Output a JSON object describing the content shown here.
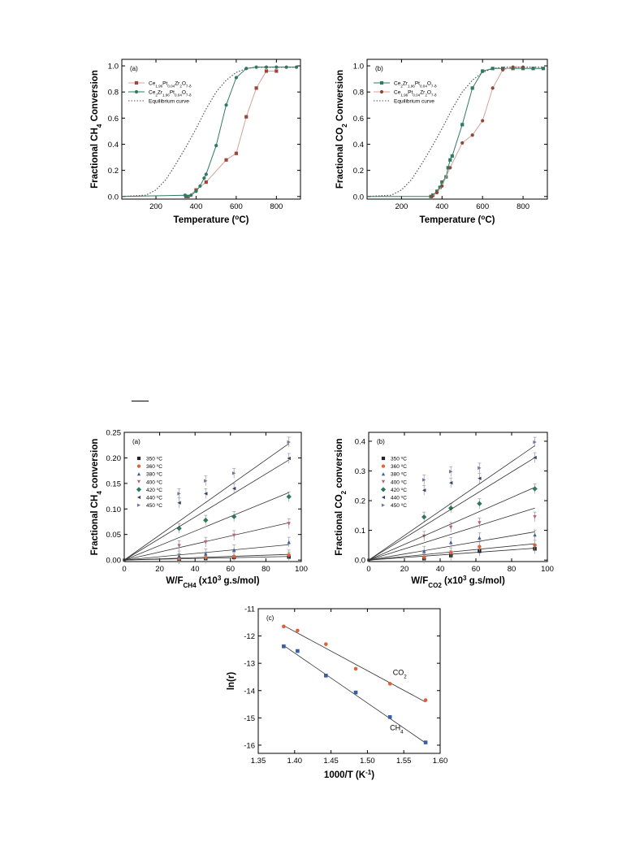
{
  "chart_data": [
    {
      "id": "top-a",
      "type": "line",
      "panel_label": "(a)",
      "xlabel": "Temperature (°C)",
      "ylabel": "Fractional CH4 Conversion",
      "xlim": [
        30,
        920
      ],
      "ylim": [
        -0.02,
        1.05
      ],
      "xticks": [
        200,
        400,
        600,
        800
      ],
      "yticks": [
        0.0,
        0.2,
        0.4,
        0.6,
        0.8,
        1.0
      ],
      "legend_position": "top-left",
      "series": [
        {
          "name": "Ce1.96Pt0.04Zr2O7-δ",
          "color": "#a0443a",
          "line_color": "#d9a09a",
          "marker": "square",
          "x": [
            350,
            360,
            400,
            450,
            550,
            600,
            650,
            700,
            750,
            800
          ],
          "y": [
            0.0,
            0.0,
            0.05,
            0.11,
            0.28,
            0.33,
            0.61,
            0.83,
            0.96,
            0.96
          ]
        },
        {
          "name": "Ce2Zr1.96Pt0.04O7-δ",
          "color": "#2e7b63",
          "line_color": "#2e7b63",
          "marker": "circle",
          "x": [
            30,
            345,
            355,
            375,
            400,
            420,
            440,
            450,
            500,
            550,
            600,
            650,
            700,
            750,
            800,
            850,
            900
          ],
          "y": [
            0.0,
            0.01,
            0.0,
            0.01,
            0.04,
            0.08,
            0.14,
            0.17,
            0.39,
            0.7,
            0.91,
            0.98,
            0.99,
            0.99,
            0.99,
            0.99,
            0.99
          ]
        },
        {
          "name": "Equilibrium curve",
          "color": "#555555",
          "line_color": "#555555",
          "marker": "none",
          "dashed": true,
          "x": [
            30,
            150,
            200,
            250,
            300,
            350,
            400,
            450,
            500,
            550,
            600,
            650,
            700,
            900
          ],
          "y": [
            0.0,
            0.01,
            0.05,
            0.13,
            0.25,
            0.38,
            0.52,
            0.67,
            0.8,
            0.89,
            0.95,
            0.98,
            0.99,
            0.99
          ]
        }
      ]
    },
    {
      "id": "top-b",
      "type": "line",
      "panel_label": "(b)",
      "xlabel": "Temperature (°C)",
      "ylabel": "Fractional CO2 Conversion",
      "xlim": [
        30,
        920
      ],
      "ylim": [
        -0.02,
        1.05
      ],
      "xticks": [
        200,
        400,
        600,
        800
      ],
      "yticks": [
        0.0,
        0.2,
        0.4,
        0.6,
        0.8,
        1.0
      ],
      "legend_position": "top-left",
      "series": [
        {
          "name": "Ce2Zr1.96Pt0.04O7-δ",
          "color": "#2e7b63",
          "line_color": "#2e7b63",
          "marker": "square",
          "x": [
            30,
            345,
            355,
            375,
            390,
            400,
            420,
            430,
            440,
            450,
            500,
            550,
            600,
            650,
            700,
            750,
            800,
            850,
            900
          ],
          "y": [
            0.0,
            0.0,
            0.01,
            0.04,
            0.07,
            0.11,
            0.15,
            0.22,
            0.28,
            0.31,
            0.55,
            0.83,
            0.96,
            0.98,
            0.98,
            0.98,
            0.98,
            0.98,
            0.98
          ]
        },
        {
          "name": "Ce1.96Pt0.04Zr2O7-δ",
          "color": "#8b4a37",
          "line_color": "#d9a09a",
          "marker": "circle",
          "x": [
            350,
            375,
            400,
            440,
            500,
            550,
            600,
            650,
            700,
            750,
            800
          ],
          "y": [
            0.0,
            0.03,
            0.08,
            0.22,
            0.41,
            0.47,
            0.58,
            0.83,
            0.97,
            0.99,
            0.99
          ]
        },
        {
          "name": "Equilibrium curve",
          "color": "#555555",
          "line_color": "#555555",
          "marker": "none",
          "dashed": true,
          "x": [
            30,
            150,
            200,
            250,
            300,
            350,
            400,
            450,
            500,
            550,
            600,
            650,
            700,
            900
          ],
          "y": [
            0.0,
            0.01,
            0.05,
            0.13,
            0.25,
            0.38,
            0.52,
            0.67,
            0.8,
            0.89,
            0.95,
            0.98,
            0.99,
            0.99
          ]
        }
      ]
    },
    {
      "id": "mid-a",
      "type": "scatter",
      "panel_label": "(a)",
      "xlabel": "W/FCH4 (x10³ g.s/mol)",
      "ylabel": "Fractional CH4 conversion",
      "xlim": [
        0,
        100
      ],
      "ylim": [
        -0.003,
        0.25
      ],
      "xticks": [
        0,
        20,
        40,
        60,
        80,
        100
      ],
      "yticks": [
        0.0,
        0.05,
        0.1,
        0.15,
        0.2,
        0.25
      ],
      "legend_position": "top-left",
      "x": [
        31,
        46,
        62,
        93
      ],
      "series": [
        {
          "name": "350 °C",
          "color": "#222222",
          "marker": "square",
          "y": [
            0.002,
            0.003,
            0.005,
            0.006
          ],
          "fit_end": 0.007
        },
        {
          "name": "360 °C",
          "color": "#e0603a",
          "marker": "circle",
          "y": [
            0.003,
            0.005,
            0.007,
            0.01
          ],
          "fit_end": 0.011
        },
        {
          "name": "380 °C",
          "color": "#3a5e9e",
          "marker": "triangle-up",
          "y": [
            0.008,
            0.012,
            0.02,
            0.035
          ],
          "fit_end": 0.03
        },
        {
          "name": "400 °C",
          "color": "#c06070",
          "marker": "triangle-down",
          "y": [
            0.028,
            0.035,
            0.048,
            0.071
          ],
          "fit_end": 0.073
        },
        {
          "name": "420 °C",
          "color": "#2e7a55",
          "marker": "diamond",
          "y": [
            0.062,
            0.078,
            0.085,
            0.124
          ],
          "fit_end": 0.132
        },
        {
          "name": "440 °C",
          "color": "#334466",
          "marker": "triangle-left",
          "y": [
            0.112,
            0.13,
            0.14,
            0.199
          ],
          "fit_end": 0.196
        },
        {
          "name": "450 °C",
          "color": "#7b6fa5",
          "marker": "triangle-right",
          "y": [
            0.13,
            0.155,
            0.17,
            0.231
          ],
          "fit_end": 0.228
        }
      ]
    },
    {
      "id": "mid-b",
      "type": "scatter",
      "panel_label": "(b)",
      "xlabel": "W/FCO2 (x10³ g.s/mol)",
      "ylabel": "Fractional CO2 conversion",
      "xlim": [
        0,
        100
      ],
      "ylim": [
        -0.005,
        0.43
      ],
      "xticks": [
        0,
        20,
        40,
        60,
        80,
        100
      ],
      "yticks": [
        0.0,
        0.1,
        0.2,
        0.3,
        0.4
      ],
      "legend_position": "top-left",
      "x": [
        31,
        46,
        62,
        93
      ],
      "series": [
        {
          "name": "350 °C",
          "color": "#222222",
          "marker": "square",
          "y": [
            0.005,
            0.015,
            0.03,
            0.038
          ],
          "fit_end": 0.04
        },
        {
          "name": "360 °C",
          "color": "#e0603a",
          "marker": "circle",
          "y": [
            0.01,
            0.025,
            0.045,
            0.05
          ],
          "fit_end": 0.055
        },
        {
          "name": "380 °C",
          "color": "#3a5e9e",
          "marker": "triangle-up",
          "y": [
            0.03,
            0.06,
            0.075,
            0.085
          ],
          "fit_end": 0.095
        },
        {
          "name": "400 °C",
          "color": "#c06070",
          "marker": "triangle-down",
          "y": [
            0.08,
            0.11,
            0.125,
            0.145
          ],
          "fit_end": 0.175
        },
        {
          "name": "420 °C",
          "color": "#2e7a55",
          "marker": "diamond",
          "y": [
            0.145,
            0.175,
            0.19,
            0.24
          ],
          "fit_end": 0.245
        },
        {
          "name": "440 °C",
          "color": "#334466",
          "marker": "triangle-left",
          "y": [
            0.235,
            0.26,
            0.275,
            0.345
          ],
          "fit_end": 0.345
        },
        {
          "name": "450 °C",
          "color": "#7b6fa5",
          "marker": "triangle-right",
          "y": [
            0.27,
            0.298,
            0.31,
            0.397
          ],
          "fit_end": 0.385
        }
      ]
    },
    {
      "id": "bottom-c",
      "type": "scatter",
      "panel_label": "(c)",
      "xlabel": "1000/T (K⁻¹)",
      "ylabel": "ln(r)",
      "xlim": [
        1.35,
        1.6
      ],
      "ylim": [
        -16.3,
        -11.0
      ],
      "xticks": [
        1.35,
        1.4,
        1.45,
        1.5,
        1.55,
        1.6
      ],
      "yticks": [
        -16,
        -15,
        -14,
        -13,
        -12,
        -11
      ],
      "series": [
        {
          "name": "CO2",
          "color": "#e0603a",
          "marker": "circle",
          "x": [
            1.385,
            1.404,
            1.443,
            1.484,
            1.531,
            1.58
          ],
          "y": [
            -11.65,
            -11.8,
            -12.3,
            -13.2,
            -13.75,
            -14.35
          ],
          "fit": [
            [
              1.385,
              -11.62
            ],
            [
              1.58,
              -14.42
            ]
          ]
        },
        {
          "name": "CH4",
          "color": "#3a5e9e",
          "marker": "square",
          "x": [
            1.385,
            1.404,
            1.443,
            1.484,
            1.531,
            1.58
          ],
          "y": [
            -12.38,
            -12.55,
            -13.45,
            -14.07,
            -14.97,
            -15.9
          ],
          "fit": [
            [
              1.385,
              -12.35
            ],
            [
              1.58,
              -15.92
            ]
          ]
        }
      ],
      "annotations": [
        {
          "text": "CO2",
          "x": 1.535,
          "y": -13.42
        },
        {
          "text": "CH4",
          "x": 1.531,
          "y": -15.45
        }
      ]
    }
  ]
}
